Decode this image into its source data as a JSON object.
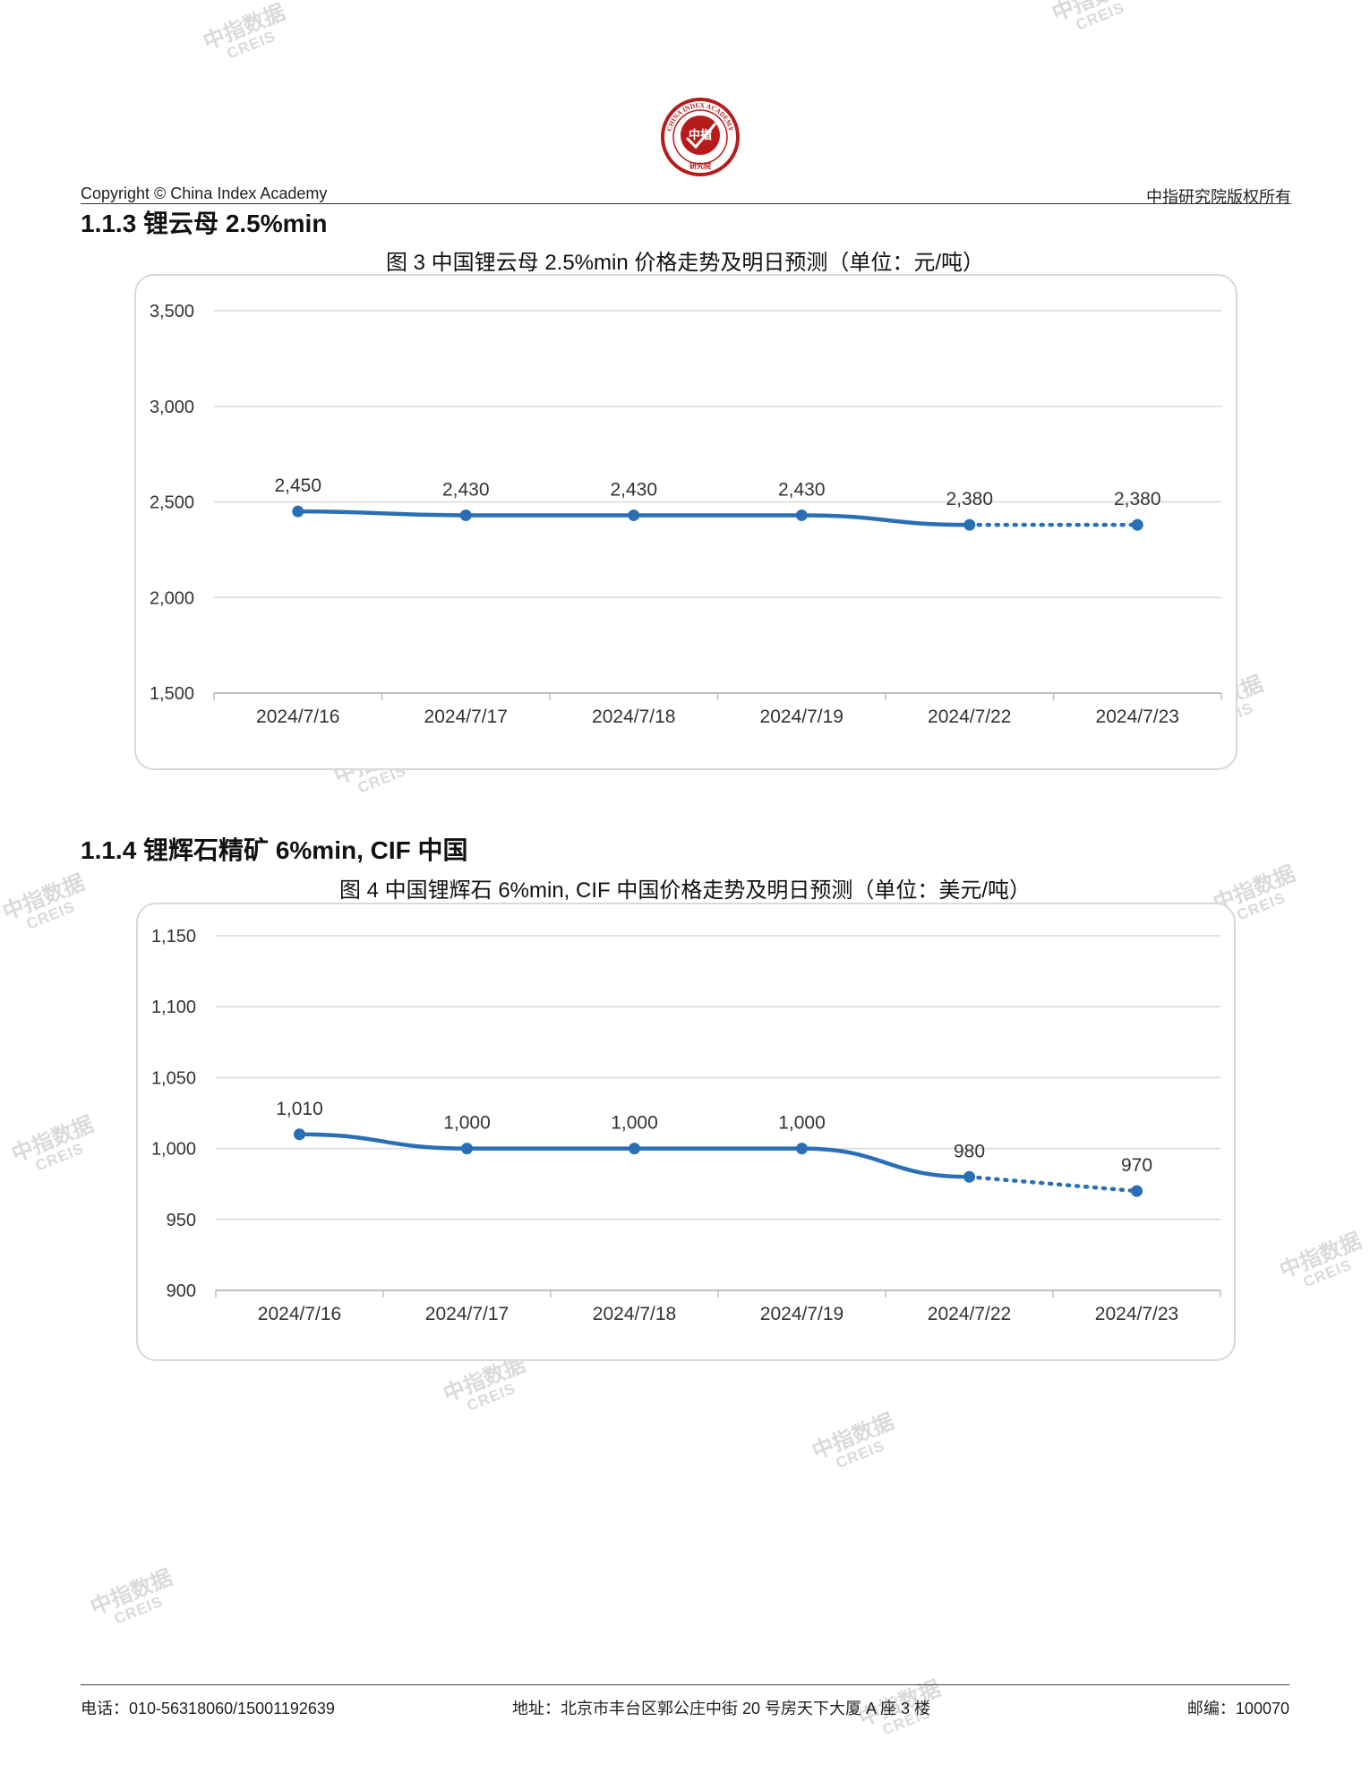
{
  "header": {
    "copyright": "Copyright © China Index Academy",
    "rights": "中指研究院版权所有",
    "logo": {
      "ring_text": "CHINA INDEX ACADEMY",
      "center_text": "中指",
      "bottom_text": "研究院",
      "color": "#b71c1c"
    }
  },
  "sections": [
    {
      "title": "1.1.3 锂云母 2.5%min"
    },
    {
      "title": "1.1.4 锂辉石精矿 6%min, CIF 中国"
    }
  ],
  "chart_data": [
    {
      "type": "line",
      "title": "图 3 中国锂云母 2.5%min 价格走势及明日预测（单位：元/吨）",
      "categories": [
        "2024/7/16",
        "2024/7/17",
        "2024/7/18",
        "2024/7/19",
        "2024/7/22",
        "2024/7/23"
      ],
      "values": [
        2450,
        2430,
        2430,
        2430,
        2380,
        2380
      ],
      "value_labels": [
        "2,450",
        "2,430",
        "2,430",
        "2,430",
        "2,380",
        "2,380"
      ],
      "forecast_last_segment": true,
      "ylim": [
        1500,
        3500
      ],
      "yticks": [
        1500,
        2000,
        2500,
        3000,
        3500
      ],
      "ytick_labels": [
        "1,500",
        "2,000",
        "2,500",
        "3,000",
        "3,500"
      ],
      "grid": true,
      "line_color": "#2a6fb5"
    },
    {
      "type": "line",
      "title": "图 4 中国锂辉石 6%min, CIF 中国价格走势及明日预测（单位：美元/吨）",
      "categories": [
        "2024/7/16",
        "2024/7/17",
        "2024/7/18",
        "2024/7/19",
        "2024/7/22",
        "2024/7/23"
      ],
      "values": [
        1010,
        1000,
        1000,
        1000,
        980,
        970
      ],
      "value_labels": [
        "1,010",
        "1,000",
        "1,000",
        "1,000",
        "980",
        "970"
      ],
      "forecast_last_segment": true,
      "ylim": [
        900,
        1150
      ],
      "yticks": [
        900,
        950,
        1000,
        1050,
        1100,
        1150
      ],
      "ytick_labels": [
        "900",
        "950",
        "1,000",
        "1,050",
        "1,100",
        "1,150"
      ],
      "grid": true,
      "line_color": "#2a6fb5"
    }
  ],
  "watermark": {
    "cn": "中指数据",
    "en": "CREIS",
    "color": "#d4d4d4"
  },
  "footer": {
    "phone": "电话：010-56318060/15001192639",
    "address": "地址：北京市丰台区郭公庄中街 20 号房天下大厦 A 座 3 楼",
    "postcode": "邮编：100070"
  }
}
